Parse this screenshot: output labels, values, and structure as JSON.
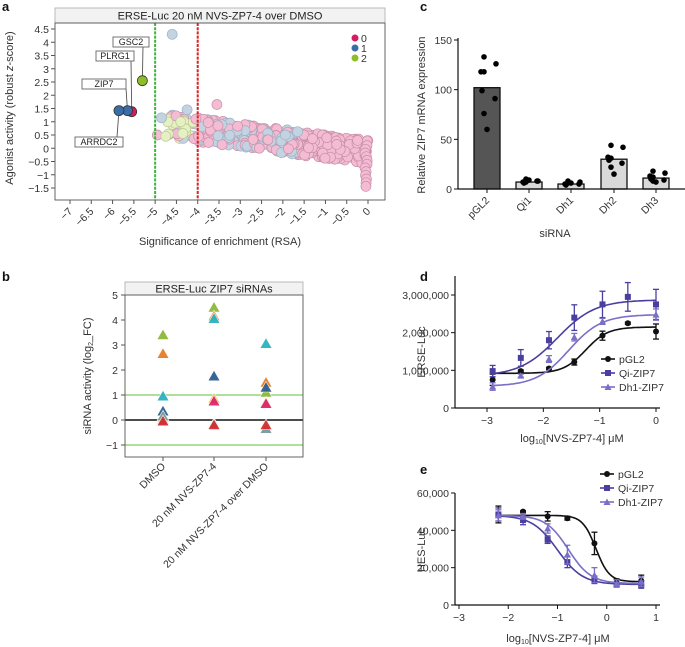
{
  "panels": {
    "a": "a",
    "b": "b",
    "c": "c",
    "d": "d",
    "e": "e"
  },
  "chart_data": [
    {
      "id": "a",
      "type": "scatter",
      "title": "ERSE-Luc   20 nM NVS-ZP7-4 over DMSO",
      "xlabel": "Significance of enrichment (RSA)",
      "ylabel": "Agonist activity (robust z-score)",
      "xlim": [
        -7.2,
        0.35
      ],
      "ylim": [
        -1.8,
        4.7
      ],
      "xticks": [
        -7,
        -6.5,
        -6,
        -5.5,
        -5,
        -4.5,
        -4,
        -3.5,
        -3,
        -2.5,
        -2,
        -1.5,
        -1,
        -0.5,
        0
      ],
      "xtick_labels": [
        "−7",
        "−6.5",
        "−6",
        "−5.5",
        "−5",
        "−4.5",
        "−4",
        "−3.5",
        "−3",
        "−2.5",
        "−2",
        "−1.5",
        "−1",
        "−0.5",
        "0"
      ],
      "yticks": [
        4.5,
        4,
        3.5,
        3,
        2.5,
        2,
        1.5,
        1,
        0.5,
        0,
        -0.5,
        -1,
        -1.5
      ],
      "ytick_labels": [
        "4.5",
        "4",
        "3.5",
        "3",
        "2.5",
        "2",
        "1.5",
        "1",
        "0.5",
        "0",
        "−0.5",
        "−1",
        "−1.5"
      ],
      "threshold_lines": [
        {
          "x": -5.0,
          "color": "#3cb33c",
          "style": "dashed"
        },
        {
          "x": -4.0,
          "color": "#e02020",
          "style": "dashed"
        }
      ],
      "legend": {
        "placement": "top-right",
        "entries": [
          {
            "label": "0",
            "color": "#d81b60"
          },
          {
            "label": "1",
            "color": "#3a6ea5"
          },
          {
            "label": "2",
            "color": "#8cbf26"
          }
        ]
      },
      "highlighted_points": [
        {
          "label": "GSC2",
          "x": -5.3,
          "y": 2.55,
          "group": 2
        },
        {
          "label": "PLRG1",
          "x": -5.55,
          "y": 1.38,
          "group": 0
        },
        {
          "label": "ZIP7",
          "x": -5.65,
          "y": 1.42,
          "group": 1
        },
        {
          "label": "ARRDC2",
          "x": -5.85,
          "y": 1.42,
          "group": 1
        }
      ],
      "background_points_note": "Dense cloud of faded points (groups 0/1/2) from x≈-4.8 to 0, y declining from ≈1.5 to ≈0; tail at x≈0 down to y≈-1.5; one outlier at (-4.6, 4.3)",
      "background_groups_colors": {
        "0": "#f4bcd3",
        "1": "#c3d3e2",
        "2": "#e5f0c3"
      }
    },
    {
      "id": "b",
      "type": "scatter",
      "title": "ERSE-Luc   ZIP7 siRNAs",
      "xlabel": "",
      "ylabel": "siRNA activity (log2_FC)",
      "ylim": [
        -1.5,
        5
      ],
      "yticks": [
        5,
        4,
        3,
        2,
        1,
        0,
        -1
      ],
      "ytick_labels": [
        "5",
        "4",
        "3",
        "2",
        "1",
        "0",
        "−1"
      ],
      "categories": [
        "DMSO",
        "20 nM NVS-ZP7-4",
        "20 nM NVS-ZP7-4 over DMSO"
      ],
      "hlines": [
        {
          "y": 1,
          "color": "#5cbf3a"
        },
        {
          "y": 0,
          "color": "#111111"
        },
        {
          "y": -1,
          "color": "#5cbf3a"
        }
      ],
      "series": [
        {
          "name": "siRNA-lime",
          "color": "#8db83a",
          "values": [
            3.4,
            4.5,
            1.1
          ]
        },
        {
          "name": "siRNA-orange",
          "color": "#e67e22",
          "values": [
            2.65,
            4.15,
            1.5
          ]
        },
        {
          "name": "siRNA-cyan",
          "color": "#2bb3c0",
          "values": [
            0.95,
            4.05,
            3.05
          ]
        },
        {
          "name": "siRNA-navy",
          "color": "#2d5f8f",
          "values": [
            0.35,
            1.75,
            1.3
          ]
        },
        {
          "name": "siRNA-yellow",
          "color": "#e0b020",
          "values": [
            0.1,
            0.85,
            0.7
          ]
        },
        {
          "name": "siRNA-magenta",
          "color": "#e0266e",
          "values": [
            0.0,
            0.75,
            0.65
          ]
        },
        {
          "name": "siRNA-gray",
          "color": "#7a9a9a",
          "values": [
            0.15,
            -0.15,
            -0.35
          ]
        },
        {
          "name": "siRNA-red",
          "color": "#d32f2f",
          "values": [
            -0.05,
            -0.2,
            -0.2
          ]
        }
      ]
    },
    {
      "id": "c",
      "type": "bar",
      "title": "",
      "xlabel": "siRNA",
      "ylabel": "Relative ZIP7 mRNA expression",
      "ylim": [
        0,
        150
      ],
      "yticks": [
        0,
        50,
        100,
        150
      ],
      "ytick_labels": [
        "0",
        "50",
        "100",
        "150"
      ],
      "categories": [
        "pGL2",
        "Qi1",
        "Dh1",
        "Dh2",
        "Dh3"
      ],
      "values": [
        102,
        7,
        5,
        30,
        11
      ],
      "bar_colors": [
        "#555555",
        "#d9d9d9",
        "#d9d9d9",
        "#d9d9d9",
        "#d9d9d9"
      ],
      "points": [
        [
          133,
          126,
          118,
          118,
          99,
          91,
          76,
          60
        ],
        [
          9,
          8,
          7,
          10,
          6,
          8,
          7,
          9
        ],
        [
          8,
          7,
          5,
          6,
          4,
          5,
          7,
          6
        ],
        [
          44,
          42,
          32,
          31,
          29,
          26,
          22,
          15
        ],
        [
          18,
          16,
          13,
          12,
          10,
          9,
          8,
          7
        ]
      ]
    },
    {
      "id": "d",
      "type": "line",
      "title": "",
      "xlabel": "log10[NVS-ZP7-4] μM",
      "ylabel": "ERSE-Luc",
      "xlim": [
        -3.5,
        0.1
      ],
      "ylim": [
        0,
        3500000
      ],
      "xticks": [
        -3,
        -2,
        -1,
        0
      ],
      "xtick_labels": [
        "−3",
        "−2",
        "−1",
        "0"
      ],
      "yticks": [
        0,
        1000000,
        2000000,
        3000000
      ],
      "ytick_labels": [
        "0",
        "1,000,000",
        "2,000,000",
        "3,000,000"
      ],
      "legend": {
        "placement": "center-right",
        "entries": [
          "pGL2",
          "Qi-ZIP7",
          "Dh1-ZIP7"
        ]
      },
      "x": [
        -2.9,
        -2.4,
        -1.9,
        -1.45,
        -0.95,
        -0.5,
        0
      ],
      "series": [
        {
          "name": "pGL2",
          "color": "#111111",
          "marker": "circle",
          "values": [
            750000,
            980000,
            1050000,
            1220000,
            1920000,
            2250000,
            2030000
          ],
          "errors": [
            150000,
            30000,
            30000,
            80000,
            120000,
            30000,
            200000
          ],
          "fit": {
            "bottom": 920000,
            "top": 2150000,
            "logEC50": -1.25,
            "hill": 2.2
          }
        },
        {
          "name": "Qi-ZIP7",
          "color": "#4a3fa0",
          "marker": "square",
          "values": [
            980000,
            1330000,
            1800000,
            2400000,
            2750000,
            2950000,
            2750000
          ],
          "errors": [
            150000,
            220000,
            230000,
            340000,
            350000,
            380000,
            400000
          ],
          "fit": {
            "bottom": 850000,
            "top": 2870000,
            "logEC50": -1.75,
            "hill": 1.3
          }
        },
        {
          "name": "Dh1-ZIP7",
          "color": "#7a6fc8",
          "marker": "triangle",
          "values": [
            570000,
            860000,
            1300000,
            1880000,
            2300000,
            null,
            2480000
          ],
          "errors": [
            100000,
            40000,
            90000,
            100000,
            80000,
            null,
            150000
          ],
          "fit": {
            "bottom": 580000,
            "top": 2480000,
            "logEC50": -1.55,
            "hill": 1.5
          }
        }
      ]
    },
    {
      "id": "e",
      "type": "line",
      "title": "",
      "xlabel": "log10[NVS-ZP7-4] μM",
      "ylabel": "HES-Luc",
      "xlim": [
        -3,
        1
      ],
      "ylim": [
        0,
        60000
      ],
      "xticks": [
        -3,
        -2,
        -1,
        0,
        1
      ],
      "xtick_labels": [
        "−3",
        "−2",
        "−1",
        "0",
        "1"
      ],
      "yticks": [
        0,
        20000,
        40000,
        60000
      ],
      "ytick_labels": [
        "0",
        "20,000",
        "40,000",
        "60,000"
      ],
      "legend": {
        "placement": "top-right",
        "entries": [
          "pGL2",
          "Qi-ZIP7",
          "Dh1-ZIP7"
        ]
      },
      "x": [
        -2.2,
        -1.7,
        -1.2,
        -0.8,
        -0.25,
        0.2,
        0.7
      ],
      "series": [
        {
          "name": "pGL2",
          "color": "#111111",
          "marker": "circle",
          "values": [
            48500,
            50000,
            47500,
            46500,
            33000,
            12000,
            13000
          ],
          "errors": [
            4500,
            500,
            2500,
            1000,
            6000,
            2000,
            3000
          ],
          "fit": {
            "bottom": 12500,
            "top": 48000,
            "logEC50": -0.22,
            "hill": 3.2
          }
        },
        {
          "name": "Qi-ZIP7",
          "color": "#4a3fa0",
          "marker": "square",
          "values": [
            48500,
            45500,
            35000,
            23000,
            13500,
            11000,
            11000
          ],
          "errors": [
            3500,
            2500,
            2000,
            3000,
            2000,
            1000,
            2000
          ],
          "fit": {
            "bottom": 11000,
            "top": 48000,
            "logEC50": -1.0,
            "hill": 1.7
          }
        },
        {
          "name": "Dh1-ZIP7",
          "color": "#7a6fc8",
          "marker": "triangle",
          "values": [
            48000,
            47500,
            41000,
            27000,
            16000,
            11500,
            12500
          ],
          "errors": [
            3000,
            1500,
            2500,
            5000,
            4000,
            2000,
            2500
          ],
          "fit": {
            "bottom": 11500,
            "top": 48000,
            "logEC50": -0.78,
            "hill": 1.9
          }
        }
      ]
    }
  ]
}
